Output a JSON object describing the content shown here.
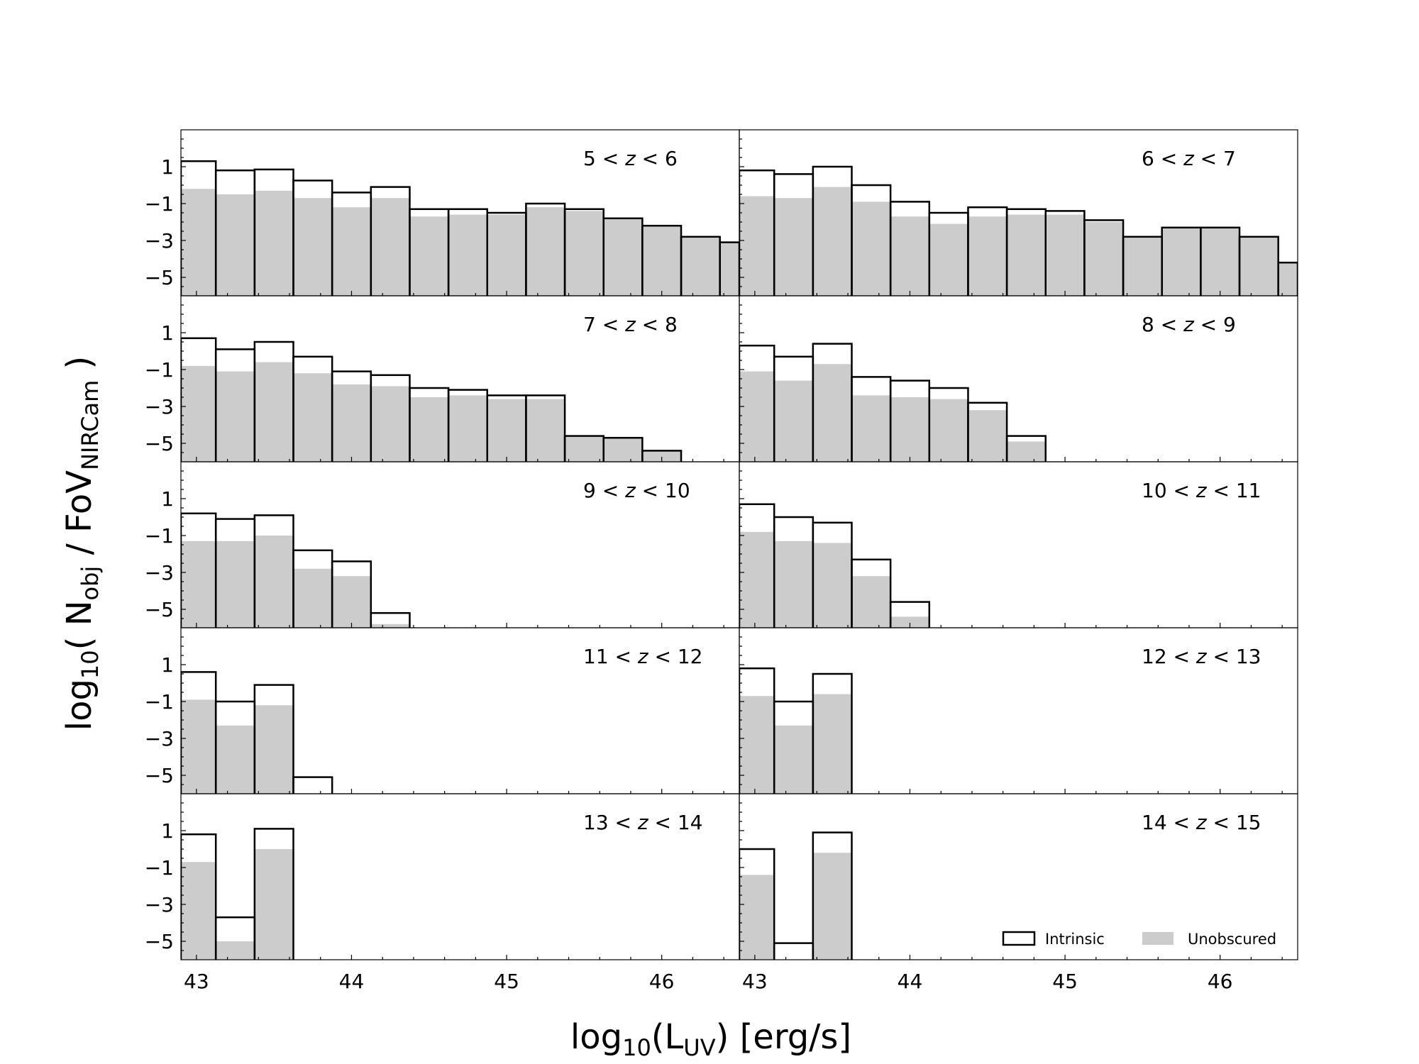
{
  "chart_data": {
    "type": "bar",
    "title": "",
    "xlabel": {
      "main": "log",
      "sub": "10",
      "open": "(L",
      "sub2": "UV",
      "close": ") [erg/s]"
    },
    "ylabel": {
      "pre": "log",
      "pre_sub": "10",
      "mid": "( N",
      "mid_sub": "obj",
      "slash": " / FoV",
      "slash_sub": "NIRCam",
      "end": " )"
    },
    "xlim": [
      42.9,
      46.5
    ],
    "ylim": [
      -6,
      3
    ],
    "xticks": [
      43,
      44,
      45,
      46
    ],
    "yticks": [
      1,
      -1,
      -3,
      -5
    ],
    "ytick_labels": [
      "1",
      "−1",
      "−3",
      "−5"
    ],
    "xtick_labels": [
      "43",
      "44",
      "45",
      "46"
    ],
    "bin_edges": [
      42.9,
      43.125,
      43.375,
      43.625,
      43.875,
      44.125,
      44.375,
      44.625,
      44.875,
      45.125,
      45.375,
      45.625,
      45.875,
      46.125,
      46.375,
      46.5
    ],
    "legend": {
      "position": "lower-right",
      "entries": [
        "Intrinsic",
        "Unobscured"
      ]
    },
    "colors": {
      "intrinsic_edge": "#000000",
      "unobscured_fill": "#cccccc",
      "axis": "#000000"
    },
    "panels": [
      {
        "label_lo": "5",
        "label_hi": "6",
        "intrinsic": [
          1.3,
          0.8,
          0.85,
          0.25,
          -0.4,
          -0.1,
          -1.3,
          -1.3,
          -1.5,
          -1.0,
          -1.3,
          -1.8,
          -2.2,
          -2.8,
          -3.1
        ],
        "unobscured": [
          -0.2,
          -0.5,
          -0.3,
          -0.7,
          -1.2,
          -0.7,
          -1.7,
          -1.6,
          -1.6,
          -1.2,
          -1.4,
          -1.8,
          -2.2,
          -2.8,
          -3.1
        ]
      },
      {
        "label_lo": "6",
        "label_hi": "7",
        "intrinsic": [
          0.8,
          0.6,
          1.0,
          0.0,
          -0.9,
          -1.5,
          -1.2,
          -1.3,
          -1.4,
          -1.9,
          -2.8,
          -2.3,
          -2.3,
          -2.8,
          -4.2
        ],
        "unobscured": [
          -0.6,
          -0.7,
          -0.1,
          -0.9,
          -1.7,
          -2.1,
          -1.7,
          -1.6,
          -1.6,
          -2.0,
          -2.8,
          -2.3,
          -2.3,
          -2.8,
          -4.2
        ]
      },
      {
        "label_lo": "7",
        "label_hi": "8",
        "intrinsic": [
          0.7,
          0.1,
          0.5,
          -0.3,
          -1.1,
          -1.3,
          -2.0,
          -2.1,
          -2.4,
          -2.4,
          -4.6,
          -4.7,
          -5.4,
          null,
          null
        ],
        "unobscured": [
          -0.8,
          -1.1,
          -0.6,
          -1.2,
          -1.8,
          -1.9,
          -2.5,
          -2.4,
          -2.6,
          -2.6,
          -4.6,
          -4.7,
          -5.4,
          null,
          null
        ]
      },
      {
        "label_lo": "8",
        "label_hi": "9",
        "intrinsic": [
          0.3,
          -0.3,
          0.4,
          -1.4,
          -1.6,
          -2.0,
          -2.8,
          -4.6,
          null,
          null,
          null,
          null,
          null,
          null,
          null
        ],
        "unobscured": [
          -1.1,
          -1.6,
          -0.7,
          -2.4,
          -2.5,
          -2.6,
          -3.2,
          -4.9,
          null,
          null,
          null,
          null,
          null,
          null,
          null
        ]
      },
      {
        "label_lo": "9",
        "label_hi": "10",
        "intrinsic": [
          0.2,
          -0.1,
          0.1,
          -1.8,
          -2.4,
          -5.2,
          null,
          null,
          null,
          null,
          null,
          null,
          null,
          null,
          null
        ],
        "unobscured": [
          -1.3,
          -1.3,
          -1.0,
          -2.8,
          -3.2,
          -5.8,
          null,
          null,
          null,
          null,
          null,
          null,
          null,
          null,
          null
        ]
      },
      {
        "label_lo": "10",
        "label_hi": "11",
        "intrinsic": [
          0.7,
          0.0,
          -0.3,
          -2.3,
          -4.6,
          null,
          null,
          null,
          null,
          null,
          null,
          null,
          null,
          null,
          null
        ],
        "unobscured": [
          -0.8,
          -1.3,
          -1.4,
          -3.2,
          -5.4,
          null,
          null,
          null,
          null,
          null,
          null,
          null,
          null,
          null,
          null
        ]
      },
      {
        "label_lo": "11",
        "label_hi": "12",
        "intrinsic": [
          0.6,
          -1.0,
          -0.1,
          -5.1,
          null,
          null,
          null,
          null,
          null,
          null,
          null,
          null,
          null,
          null,
          null
        ],
        "unobscured": [
          -0.9,
          -2.3,
          -1.2,
          null,
          null,
          null,
          null,
          null,
          null,
          null,
          null,
          null,
          null,
          null,
          null
        ]
      },
      {
        "label_lo": "12",
        "label_hi": "13",
        "intrinsic": [
          0.8,
          -1.0,
          0.5,
          null,
          null,
          null,
          null,
          null,
          null,
          null,
          null,
          null,
          null,
          null,
          null
        ],
        "unobscured": [
          -0.7,
          -2.3,
          -0.6,
          null,
          null,
          null,
          null,
          null,
          null,
          null,
          null,
          null,
          null,
          null,
          null
        ]
      },
      {
        "label_lo": "13",
        "label_hi": "14",
        "intrinsic": [
          0.8,
          -3.7,
          1.1,
          null,
          null,
          null,
          null,
          null,
          null,
          null,
          null,
          null,
          null,
          null,
          null
        ],
        "unobscured": [
          -0.7,
          -5.0,
          0.0,
          null,
          null,
          null,
          null,
          null,
          null,
          null,
          null,
          null,
          null,
          null,
          null
        ]
      },
      {
        "label_lo": "14",
        "label_hi": "15",
        "intrinsic": [
          0.0,
          -5.1,
          0.9,
          null,
          null,
          null,
          null,
          null,
          null,
          null,
          null,
          null,
          null,
          null,
          null
        ],
        "unobscured": [
          -1.4,
          null,
          -0.2,
          null,
          null,
          null,
          null,
          null,
          null,
          null,
          null,
          null,
          null,
          null,
          null
        ]
      }
    ]
  }
}
